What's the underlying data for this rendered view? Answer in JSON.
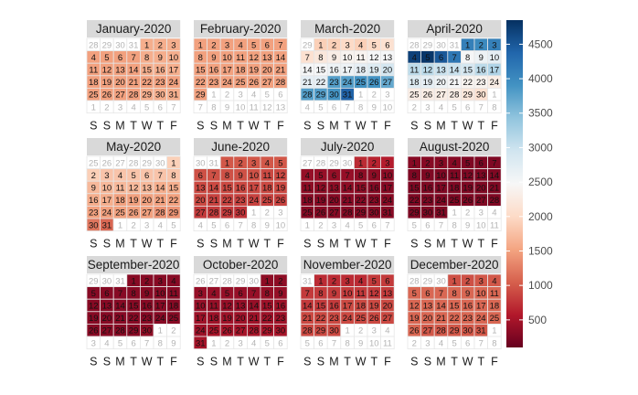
{
  "chart_data": {
    "type": "heatmap",
    "subtype": "calendar",
    "year": 2020,
    "week_start": "Saturday",
    "weekday_labels": [
      "S",
      "S",
      "M",
      "T",
      "W",
      "T",
      "F"
    ],
    "month_titles": [
      "January-2020",
      "February-2020",
      "March-2020",
      "April-2020",
      "May-2020",
      "June-2020",
      "July-2020",
      "August-2020",
      "September-2020",
      "October-2020",
      "November-2020",
      "December-2020"
    ],
    "colorbar": {
      "ticks": [
        500,
        1000,
        1500,
        2000,
        2500,
        3000,
        3500,
        4000,
        4500
      ],
      "min": 100,
      "max": 4850,
      "palette": "RdBu"
    },
    "values": [
      [
        1600,
        1600,
        1600,
        1500,
        1500,
        1500,
        1500,
        1600,
        1600,
        1600,
        1500,
        1500,
        1500,
        1500,
        1600,
        1600,
        1600,
        1500,
        1500,
        1500,
        1500,
        1500,
        1500,
        1500,
        1500,
        1500,
        1500,
        1500,
        1600,
        1600,
        1600
      ],
      [
        1500,
        1500,
        1500,
        1500,
        1500,
        1500,
        1500,
        1500,
        1500,
        1500,
        1500,
        1500,
        1500,
        1500,
        1500,
        1500,
        1500,
        1500,
        1500,
        1500,
        1500,
        1500,
        1500,
        1500,
        1500,
        1500,
        1500,
        1500,
        1500
      ],
      [
        1900,
        1900,
        2000,
        1900,
        2000,
        2100,
        2100,
        2200,
        2300,
        2400,
        2400,
        2500,
        2500,
        2500,
        2500,
        2600,
        2600,
        2700,
        2800,
        2900,
        2700,
        2700,
        3800,
        3800,
        3900,
        3900,
        3700,
        3800,
        3800,
        3900,
        4400
      ],
      [
        4100,
        4000,
        4100,
        4700,
        4800,
        4500,
        4200,
        2500,
        2600,
        2700,
        3100,
        3100,
        3000,
        3000,
        2900,
        3100,
        3200,
        2800,
        2700,
        2600,
        2500,
        2400,
        2400,
        2300,
        2300,
        2300,
        2300,
        2300,
        2200,
        2100
      ],
      [
        1900,
        1900,
        1800,
        1800,
        1800,
        1800,
        1800,
        1800,
        1700,
        1700,
        1700,
        1700,
        1700,
        1600,
        1600,
        1600,
        1600,
        1500,
        1500,
        1500,
        1500,
        1500,
        1500,
        1500,
        1500,
        1500,
        1500,
        1400,
        1400,
        1200,
        1100
      ],
      [
        1000,
        1000,
        1000,
        1000,
        1000,
        950,
        950,
        950,
        950,
        950,
        900,
        900,
        900,
        900,
        900,
        900,
        900,
        900,
        900,
        900,
        850,
        850,
        850,
        850,
        850,
        850,
        800,
        800,
        800,
        750
      ],
      [
        700,
        650,
        600,
        400,
        400,
        400,
        400,
        350,
        350,
        350,
        350,
        350,
        350,
        350,
        350,
        300,
        300,
        300,
        300,
        300,
        300,
        300,
        300,
        300,
        300,
        300,
        300,
        300,
        300,
        300,
        300
      ],
      [
        300,
        300,
        300,
        300,
        250,
        250,
        250,
        250,
        250,
        250,
        250,
        250,
        250,
        250,
        250,
        250,
        250,
        250,
        250,
        250,
        250,
        250,
        250,
        250,
        250,
        250,
        250,
        250,
        250,
        250,
        250
      ],
      [
        300,
        300,
        300,
        300,
        300,
        300,
        300,
        300,
        300,
        300,
        300,
        300,
        300,
        300,
        300,
        300,
        300,
        300,
        300,
        300,
        300,
        300,
        300,
        300,
        300,
        300,
        300,
        300,
        300,
        350
      ],
      [
        350,
        350,
        400,
        400,
        400,
        400,
        400,
        400,
        400,
        400,
        400,
        400,
        400,
        400,
        450,
        450,
        450,
        450,
        450,
        450,
        450,
        450,
        450,
        450,
        500,
        500,
        500,
        500,
        500,
        500,
        500
      ],
      [
        700,
        700,
        700,
        700,
        800,
        800,
        800,
        800,
        800,
        800,
        800,
        800,
        800,
        800,
        800,
        800,
        900,
        900,
        900,
        900,
        900,
        900,
        900,
        900,
        900,
        900,
        900,
        900,
        900,
        900
      ],
      [
        950,
        950,
        1000,
        1000,
        1100,
        1100,
        1100,
        1100,
        1100,
        1100,
        1100,
        1100,
        1100,
        1100,
        1100,
        1100,
        1100,
        1100,
        1100,
        1100,
        1100,
        1100,
        1100,
        1100,
        1100,
        1100,
        1000,
        1000,
        1000,
        1000,
        1000
      ]
    ]
  }
}
